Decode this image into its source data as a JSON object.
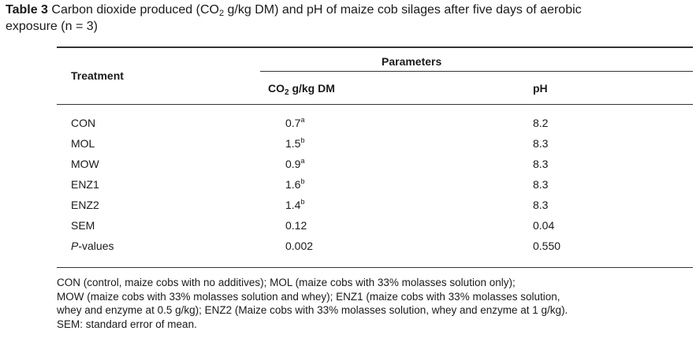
{
  "caption": {
    "label": "Table 3",
    "text_before_sub": " Carbon dioxide produced (CO",
    "sub": "2",
    "text_after_sub_line1": " g/kg DM) and pH of maize cob silages after five days of aerobic",
    "line2": "exposure (n = 3)"
  },
  "table": {
    "header": {
      "treatment": "Treatment",
      "parameters": "Parameters",
      "co2_main": "CO",
      "co2_sub": "2",
      "co2_unit": " g/kg DM",
      "ph": "pH"
    },
    "rows": [
      {
        "treatment": "CON",
        "co2": "0.7",
        "co2_sup": "a",
        "ph": "8.2"
      },
      {
        "treatment": "MOL",
        "co2": "1.5",
        "co2_sup": "b",
        "ph": "8.3"
      },
      {
        "treatment": "MOW",
        "co2": "0.9",
        "co2_sup": "a",
        "ph": "8.3"
      },
      {
        "treatment": "ENZ1",
        "co2": "1.6",
        "co2_sup": "b",
        "ph": "8.3"
      },
      {
        "treatment": "ENZ2",
        "co2": "1.4",
        "co2_sup": "b",
        "ph": "8.3"
      },
      {
        "treatment": "SEM",
        "co2": "0.12",
        "co2_sup": "",
        "ph": "0.04"
      },
      {
        "treatment_italic": "P",
        "treatment": "-values",
        "co2": "0.002",
        "co2_sup": "",
        "ph": "0.550"
      }
    ]
  },
  "footnote": {
    "line1": "CON (control, maize cobs with no additives); MOL (maize cobs with 33% molasses solution only);",
    "line2": "MOW (maize cobs with 33% molasses solution and whey); ENZ1 (maize cobs with 33% molasses solution,",
    "line3": "whey and enzyme at 0.5 g/kg); ENZ2 (Maize cobs with 33% molasses solution, whey and enzyme at 1 g/kg).",
    "line4": "SEM: standard error of mean."
  }
}
